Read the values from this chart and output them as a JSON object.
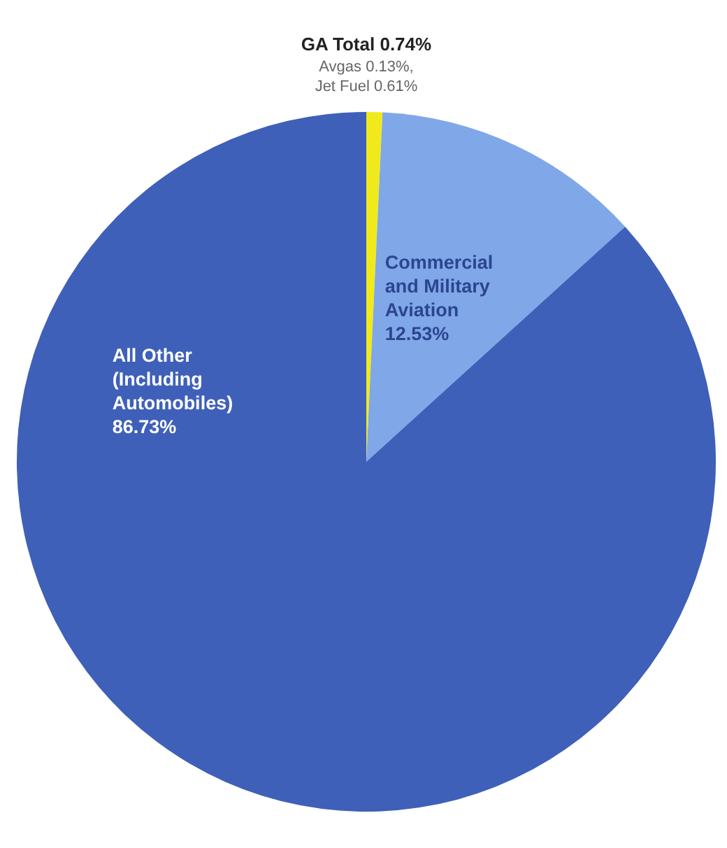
{
  "chart_data": {
    "type": "pie",
    "categories": [
      "GA Total",
      "Commercial and Military Aviation",
      "All Other (Including Automobiles)"
    ],
    "values": [
      0.74,
      12.53,
      86.73
    ],
    "value_labels": [
      "0.74%",
      "12.53%",
      "86.73%"
    ],
    "colors": [
      "#f0ea1c",
      "#80a7e8",
      "#3f60b9"
    ],
    "annotations": [
      "Avgas 0.13%, Jet Fuel 0.61%"
    ]
  }
}
